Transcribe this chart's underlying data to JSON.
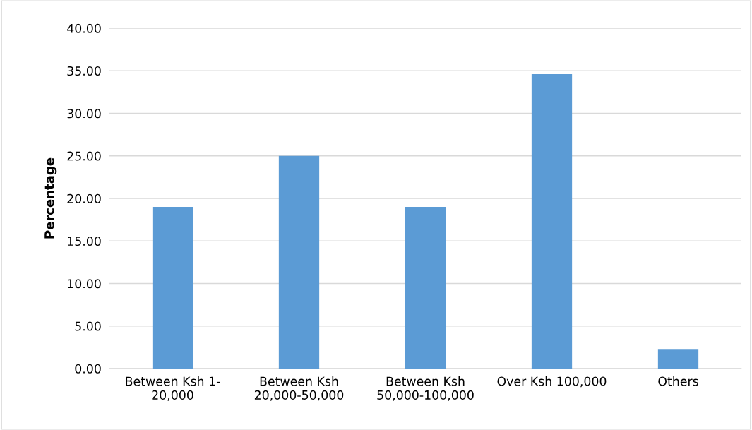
{
  "chart_data": {
    "type": "bar",
    "ylabel": "Percentage",
    "categories": [
      "Between Ksh 1-\n20,000",
      "Between Ksh\n20,000-50,000",
      "Between Ksh\n50,000-100,000",
      "Over Ksh 100,000",
      "Others"
    ],
    "values": [
      19.0,
      25.0,
      19.0,
      34.6,
      2.3
    ],
    "color": "#5b9bd5",
    "ylim": [
      0,
      40
    ],
    "yticks": [
      {
        "value": 0,
        "label": "0.00"
      },
      {
        "value": 5,
        "label": "5.00"
      },
      {
        "value": 10,
        "label": "10.00"
      },
      {
        "value": 15,
        "label": "15.00"
      },
      {
        "value": 20,
        "label": "20.00"
      },
      {
        "value": 25,
        "label": "25.00"
      },
      {
        "value": 30,
        "label": "30.00"
      },
      {
        "value": 35,
        "label": "35.00"
      },
      {
        "value": 40,
        "label": "40.00"
      }
    ],
    "grid": "y"
  }
}
